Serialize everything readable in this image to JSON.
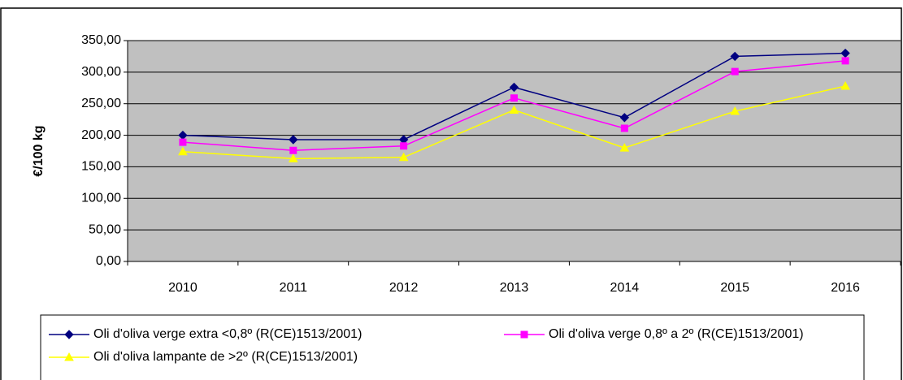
{
  "chart_data": {
    "type": "line",
    "ylabel": "€/100 kg",
    "categories": [
      "2010",
      "2011",
      "2012",
      "2013",
      "2014",
      "2015",
      "2016"
    ],
    "series": [
      {
        "name": "Oli d'oliva verge extra <0,8º (R(CE)1513/2001)",
        "color": "#000080",
        "marker": "diamond",
        "values": [
          200,
          193,
          193,
          276,
          228,
          325,
          330
        ]
      },
      {
        "name": "Oli d'oliva verge 0,8º a 2º (R(CE)1513/2001)",
        "color": "#ff00ff",
        "marker": "square",
        "values": [
          189,
          176,
          183,
          259,
          211,
          301,
          318
        ]
      },
      {
        "name": "Oli d'oliva lampante de >2º (R(CE)1513/2001)",
        "color": "#ffff00",
        "marker": "triangle",
        "values": [
          174,
          163,
          165,
          240,
          180,
          238,
          278
        ]
      }
    ],
    "ylim": [
      0,
      350
    ],
    "yticks": [
      {
        "value": 0,
        "label": "0,00"
      },
      {
        "value": 50,
        "label": "50,00"
      },
      {
        "value": 100,
        "label": "100,00"
      },
      {
        "value": 150,
        "label": "150,00"
      },
      {
        "value": 200,
        "label": "200,00"
      },
      {
        "value": 250,
        "label": "250,00"
      },
      {
        "value": 300,
        "label": "300,00"
      },
      {
        "value": 350,
        "label": "350,00"
      }
    ],
    "grid": true,
    "plot_background": "#c0c0c0"
  }
}
